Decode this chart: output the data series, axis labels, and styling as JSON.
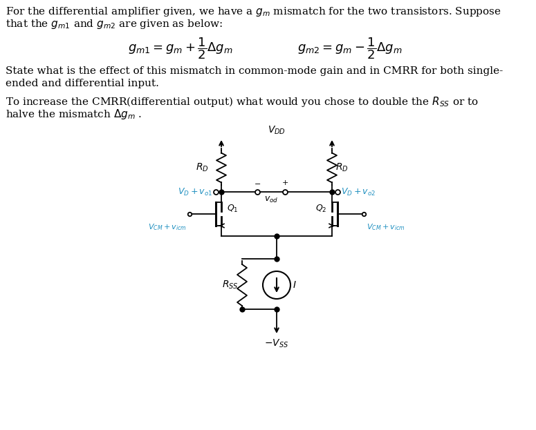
{
  "bg_color": "#FFFFFF",
  "text_color": "#000000",
  "cyan_color": "#2090C0",
  "circuit_color": "#000000",
  "body_fontsize": 11,
  "eq_fontsize": 13,
  "circuit_label_fontsize": 10,
  "fig_width": 7.75,
  "fig_height": 6.23,
  "dpi": 100
}
